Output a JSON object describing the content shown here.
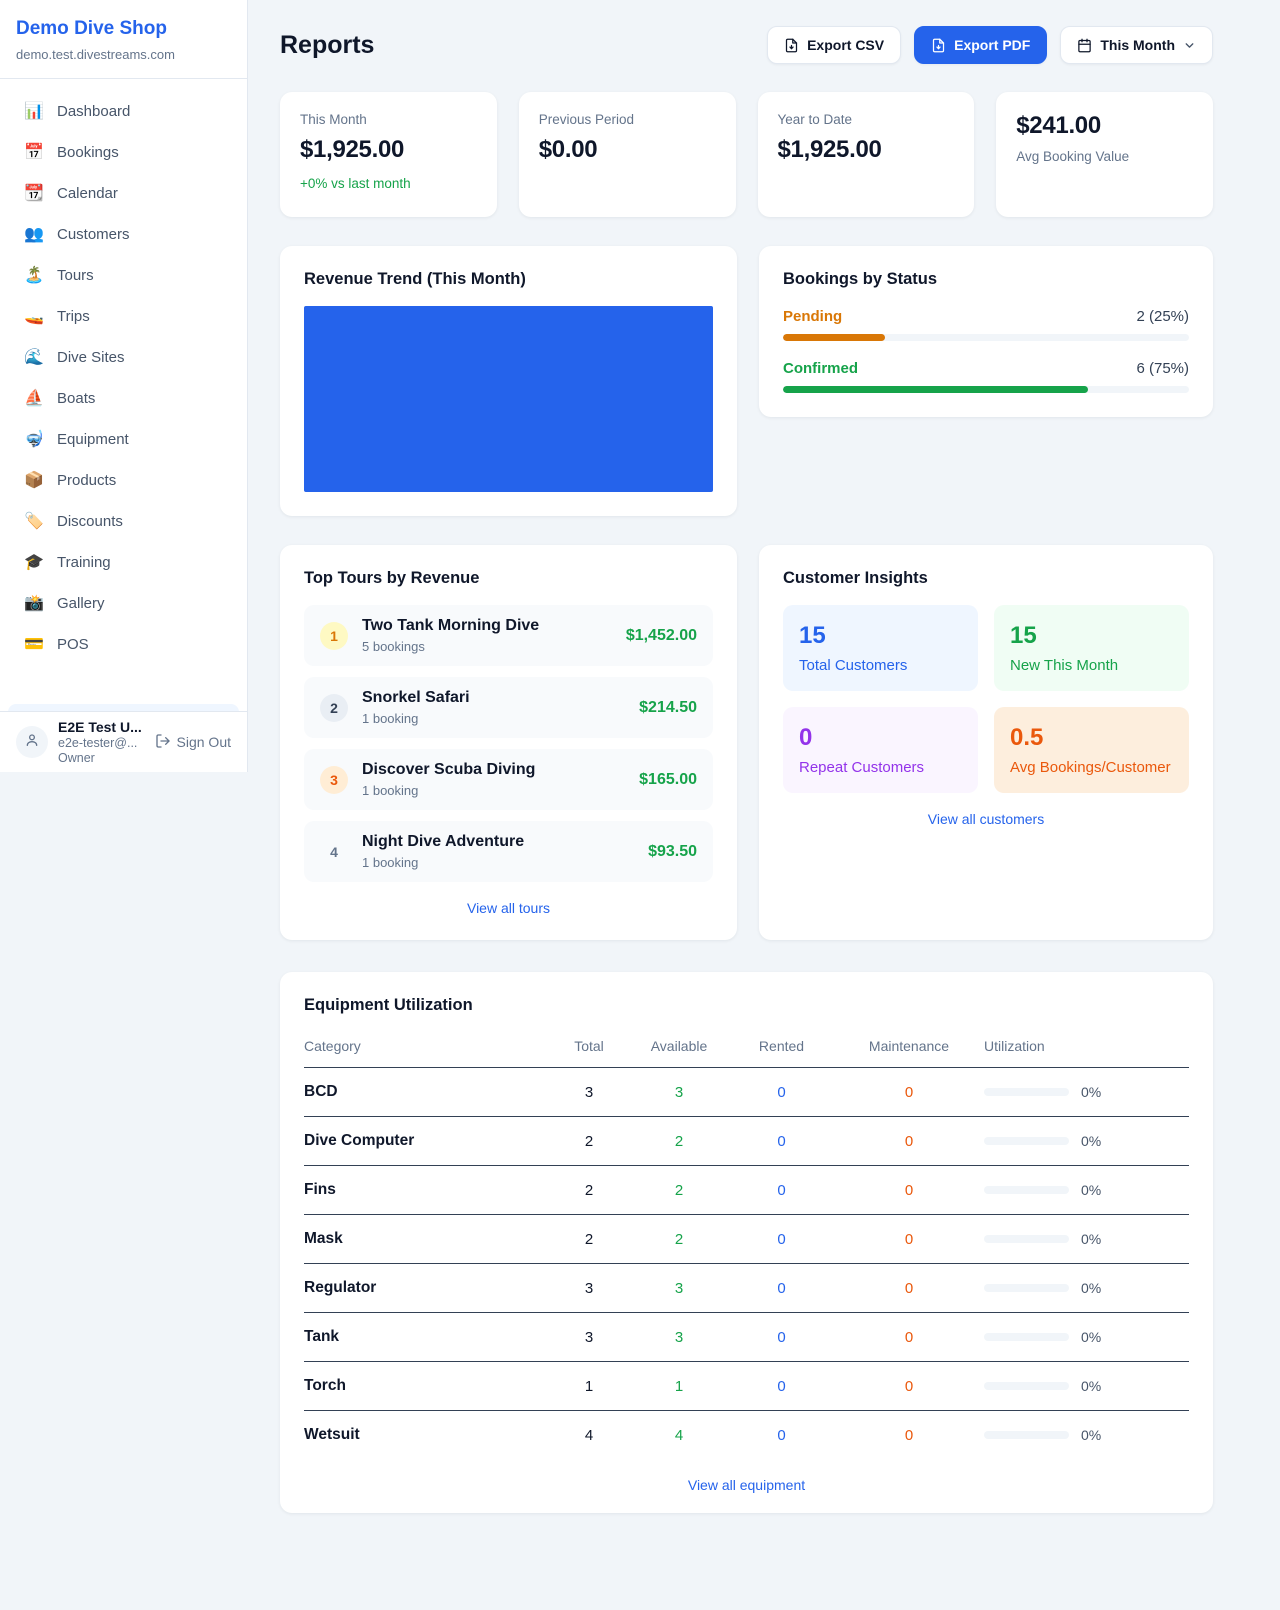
{
  "colors": {
    "accent": "#2563eb",
    "green": "#16a34a",
    "orange_status": "#d97706",
    "maintenance_orange": "#ea580c",
    "page_bg": "#f1f5f9",
    "revenue_bar": "#2563eb"
  },
  "sidebar": {
    "shop_name": "Demo Dive Shop",
    "domain": "demo.test.divestreams.com",
    "items": [
      {
        "icon": "📊",
        "icon_name": "bar-chart-icon",
        "label": "Dashboard"
      },
      {
        "icon": "📅",
        "icon_name": "calendar-number-icon",
        "label": "Bookings"
      },
      {
        "icon": "📆",
        "icon_name": "tear-off-calendar-icon",
        "label": "Calendar"
      },
      {
        "icon": "👥",
        "icon_name": "people-icon",
        "label": "Customers"
      },
      {
        "icon": "🏝️",
        "icon_name": "island-icon",
        "label": "Tours"
      },
      {
        "icon": "🚤",
        "icon_name": "speedboat-icon",
        "label": "Trips"
      },
      {
        "icon": "🌊",
        "icon_name": "wave-icon",
        "label": "Dive Sites"
      },
      {
        "icon": "⛵",
        "icon_name": "sailboat-icon",
        "label": "Boats"
      },
      {
        "icon": "🤿",
        "icon_name": "diving-mask-icon",
        "label": "Equipment"
      },
      {
        "icon": "📦",
        "icon_name": "package-icon",
        "label": "Products"
      },
      {
        "icon": "🏷️",
        "icon_name": "tag-icon",
        "label": "Discounts"
      },
      {
        "icon": "🎓",
        "icon_name": "graduation-cap-icon",
        "label": "Training"
      },
      {
        "icon": "📸",
        "icon_name": "camera-icon",
        "label": "Gallery"
      },
      {
        "icon": "💳",
        "icon_name": "credit-card-icon",
        "label": "POS"
      }
    ],
    "user": {
      "name": "E2E Test U...",
      "email": "e2e-tester@...",
      "role": "Owner",
      "sign_out": "Sign Out"
    }
  },
  "header": {
    "title": "Reports",
    "export_csv": "Export CSV",
    "export_pdf": "Export PDF",
    "period": "This Month"
  },
  "stats": [
    {
      "label": "This Month",
      "value": "$1,925.00",
      "delta": "+0% vs last month"
    },
    {
      "label": "Previous Period",
      "value": "$0.00"
    },
    {
      "label": "Year to Date",
      "value": "$1,925.00"
    },
    {
      "label": "Avg Booking Value",
      "value": "$241.00",
      "value_first": true
    }
  ],
  "revenue_trend": {
    "title": "Revenue Trend (This Month)",
    "bar_color": "#2563eb"
  },
  "bookings_by_status": {
    "title": "Bookings by Status",
    "rows": [
      {
        "label": "Pending",
        "display": "2 (25%)",
        "count": 2,
        "pct": 25,
        "color": "#d97706"
      },
      {
        "label": "Confirmed",
        "display": "6 (75%)",
        "count": 6,
        "pct": 75,
        "color": "#16a34a"
      }
    ]
  },
  "top_tours": {
    "title": "Top Tours by Revenue",
    "rows": [
      {
        "rank": 1,
        "name": "Two Tank Morning Dive",
        "bookings": "5 bookings",
        "revenue": "$1,452.00",
        "badge_bg": "#fef9c3",
        "badge_color": "#d97706"
      },
      {
        "rank": 2,
        "name": "Snorkel Safari",
        "bookings": "1 booking",
        "revenue": "$214.50",
        "badge_bg": "#e9eef4",
        "badge_color": "#334155"
      },
      {
        "rank": 3,
        "name": "Discover Scuba Diving",
        "bookings": "1 booking",
        "revenue": "$165.00",
        "badge_bg": "#ffedd5",
        "badge_color": "#ea580c"
      },
      {
        "rank": 4,
        "name": "Night Dive Adventure",
        "bookings": "1 booking",
        "revenue": "$93.50",
        "badge_bg": "transparent",
        "badge_color": "#64748b"
      }
    ],
    "view_all": "View all tours"
  },
  "customer_insights": {
    "title": "Customer Insights",
    "tiles": [
      {
        "value": "15",
        "label": "Total Customers",
        "bg": "#eff6ff",
        "color": "#2563eb"
      },
      {
        "value": "15",
        "label": "New This Month",
        "bg": "#f0fdf4",
        "color": "#16a34a"
      },
      {
        "value": "0",
        "label": "Repeat Customers",
        "bg": "#faf5ff",
        "color": "#9333ea"
      },
      {
        "value": "0.5",
        "label": "Avg Bookings/Customer",
        "bg": "#fdeedd",
        "color": "#ea580c"
      }
    ],
    "view_all": "View all customers"
  },
  "equipment": {
    "title": "Equipment Utilization",
    "columns": [
      "Category",
      "Total",
      "Available",
      "Rented",
      "Maintenance",
      "Utilization"
    ],
    "rows": [
      {
        "category": "BCD",
        "total": 3,
        "available": 3,
        "rented": 0,
        "maintenance": 0,
        "utilization": "0%",
        "pct": 0
      },
      {
        "category": "Dive Computer",
        "total": 2,
        "available": 2,
        "rented": 0,
        "maintenance": 0,
        "utilization": "0%",
        "pct": 0
      },
      {
        "category": "Fins",
        "total": 2,
        "available": 2,
        "rented": 0,
        "maintenance": 0,
        "utilization": "0%",
        "pct": 0
      },
      {
        "category": "Mask",
        "total": 2,
        "available": 2,
        "rented": 0,
        "maintenance": 0,
        "utilization": "0%",
        "pct": 0
      },
      {
        "category": "Regulator",
        "total": 3,
        "available": 3,
        "rented": 0,
        "maintenance": 0,
        "utilization": "0%",
        "pct": 0
      },
      {
        "category": "Tank",
        "total": 3,
        "available": 3,
        "rented": 0,
        "maintenance": 0,
        "utilization": "0%",
        "pct": 0
      },
      {
        "category": "Torch",
        "total": 1,
        "available": 1,
        "rented": 0,
        "maintenance": 0,
        "utilization": "0%",
        "pct": 0
      },
      {
        "category": "Wetsuit",
        "total": 4,
        "available": 4,
        "rented": 0,
        "maintenance": 0,
        "utilization": "0%",
        "pct": 0
      }
    ],
    "view_all": "View all equipment"
  }
}
